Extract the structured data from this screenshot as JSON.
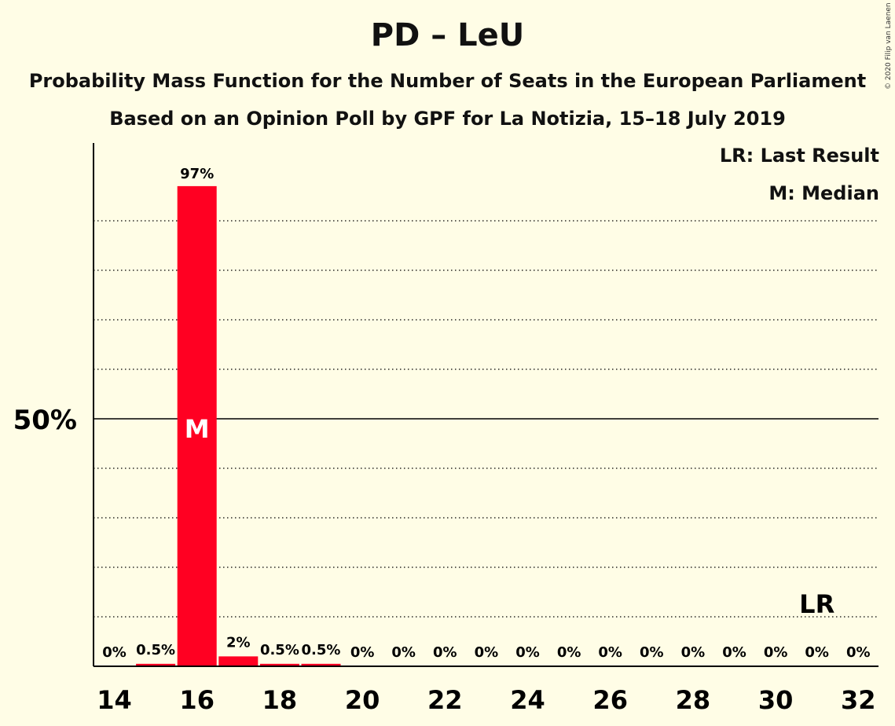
{
  "title": "PD – LeU",
  "subtitle_1": "Probability Mass Function for the Number of Seats in the European Parliament",
  "subtitle_2": "Based on an Opinion Poll by GPF for La Notizia, 15–18 July 2019",
  "copyright": "© 2020 Filip van Laenen",
  "legend": {
    "last_result": "LR: Last Result",
    "median": "M: Median"
  },
  "colors": {
    "bar": "#ff0022",
    "background": "#fffde6"
  },
  "chart_data": {
    "type": "bar",
    "x": [
      14,
      15,
      16,
      17,
      18,
      19,
      20,
      21,
      22,
      23,
      24,
      25,
      26,
      27,
      28,
      29,
      30,
      31,
      32
    ],
    "values": [
      0,
      0.5,
      97,
      2,
      0.5,
      0.5,
      0,
      0,
      0,
      0,
      0,
      0,
      0,
      0,
      0,
      0,
      0,
      0,
      0
    ],
    "value_labels": [
      "0%",
      "0.5%",
      "97%",
      "2%",
      "0.5%",
      "0.5%",
      "0%",
      "0%",
      "0%",
      "0%",
      "0%",
      "0%",
      "0%",
      "0%",
      "0%",
      "0%",
      "0%",
      "0%",
      "0%"
    ],
    "x_tick_labels": [
      "14",
      "16",
      "18",
      "20",
      "22",
      "24",
      "26",
      "28",
      "30",
      "32"
    ],
    "x_ticks": [
      14,
      16,
      18,
      20,
      22,
      24,
      26,
      28,
      30,
      32
    ],
    "y_tick_label": "50%",
    "y_tick_value": 50,
    "gridlines": [
      10,
      20,
      30,
      40,
      60,
      70,
      80,
      90
    ],
    "ylim": [
      0,
      105
    ],
    "median": 16,
    "median_label": "M",
    "last_result": 31,
    "last_result_label": "LR",
    "xlabel": "",
    "ylabel": ""
  }
}
